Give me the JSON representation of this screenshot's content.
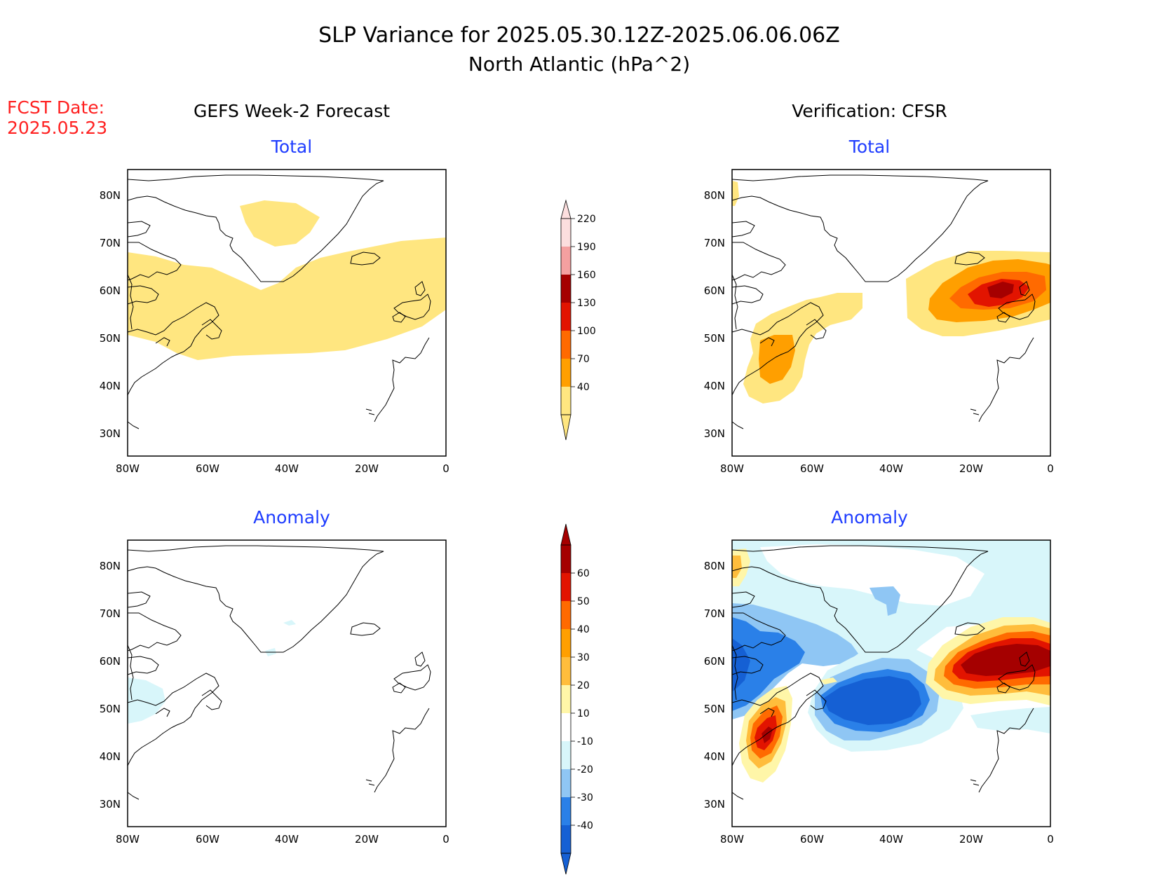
{
  "title_line1": "SLP Variance for 2025.05.30.12Z-2025.06.06.06Z",
  "title_line2": "North Atlantic (hPa^2)",
  "fcst_label": "FCST Date:",
  "fcst_date": "2025.05.23",
  "left_column_title": "GEFS Week-2 Forecast",
  "right_column_title": "Verification: CFSR",
  "panel_titles": {
    "total": "Total",
    "anomaly": "Anomaly"
  },
  "lat_labels": [
    "80N",
    "70N",
    "60N",
    "50N",
    "40N",
    "30N"
  ],
  "lon_labels": [
    "80W",
    "60W",
    "40W",
    "20W",
    "0"
  ],
  "total_colorbar": {
    "levels": [
      "40",
      "70",
      "100",
      "130",
      "160",
      "190",
      "220"
    ],
    "colors": [
      "#ffe680",
      "#ff9f00",
      "#ff6a00",
      "#e21400",
      "#a50000",
      "#f4a0a0",
      "#fcdede"
    ]
  },
  "anomaly_colorbar": {
    "levels": [
      "-40",
      "-30",
      "-20",
      "-10",
      "10",
      "20",
      "30",
      "40",
      "50",
      "60"
    ],
    "colors": [
      "#1560d4",
      "#2a80e8",
      "#8fc6f4",
      "#d8f6fa",
      "#ffffff",
      "#fff6a8",
      "#ffbd3c",
      "#ff9f00",
      "#ff6a00",
      "#e21400",
      "#a50000"
    ]
  },
  "colors": {
    "fcst_text": "#ff2020",
    "panel_title": "#1e3cff",
    "title_text": "#000000"
  }
}
